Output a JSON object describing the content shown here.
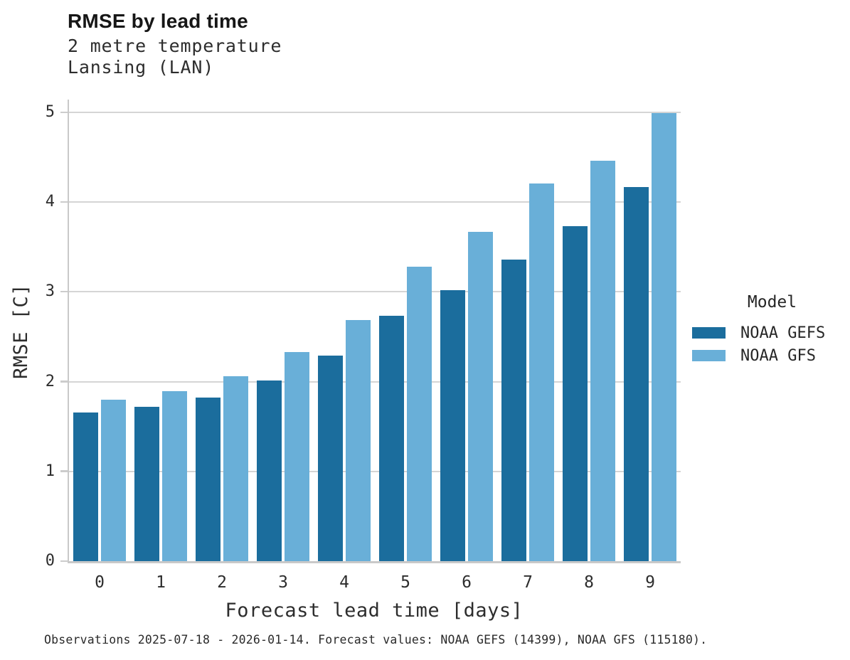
{
  "header": {
    "title": "RMSE by lead time",
    "subtitle_line1": "2 metre temperature",
    "subtitle_line2": "Lansing (LAN)"
  },
  "legend": {
    "title": "Model",
    "entries": [
      {
        "label": "NOAA GEFS",
        "color": "#1b6d9d"
      },
      {
        "label": "NOAA GFS",
        "color": "#69afd8"
      }
    ]
  },
  "footer": {
    "caption": "Observations 2025-07-18 - 2026-01-14. Forecast values: NOAA GEFS (14399), NOAA GFS (115180)."
  },
  "chart_data": {
    "type": "bar",
    "title": "RMSE by lead time",
    "subtitle": [
      "2 metre temperature",
      "Lansing (LAN)"
    ],
    "categories": [
      "0",
      "1",
      "2",
      "3",
      "4",
      "5",
      "6",
      "7",
      "8",
      "9"
    ],
    "series": [
      {
        "name": "NOAA GEFS",
        "color": "#1b6d9d",
        "values": [
          1.66,
          1.72,
          1.82,
          2.01,
          2.29,
          2.73,
          3.02,
          3.36,
          3.73,
          4.17
        ]
      },
      {
        "name": "NOAA GFS",
        "color": "#69afd8",
        "values": [
          1.8,
          1.89,
          2.06,
          2.33,
          2.69,
          3.28,
          3.67,
          4.21,
          4.46,
          4.99
        ]
      }
    ],
    "xlabel": "Forecast lead time [days]",
    "ylabel": "RMSE [C]",
    "ylim": [
      0,
      5
    ],
    "yticks": [
      0,
      1,
      2,
      3,
      4,
      5
    ],
    "grid": "horizontal",
    "grid_color": "#d5d5d5",
    "legend_title": "Model",
    "legend_position": "right"
  }
}
